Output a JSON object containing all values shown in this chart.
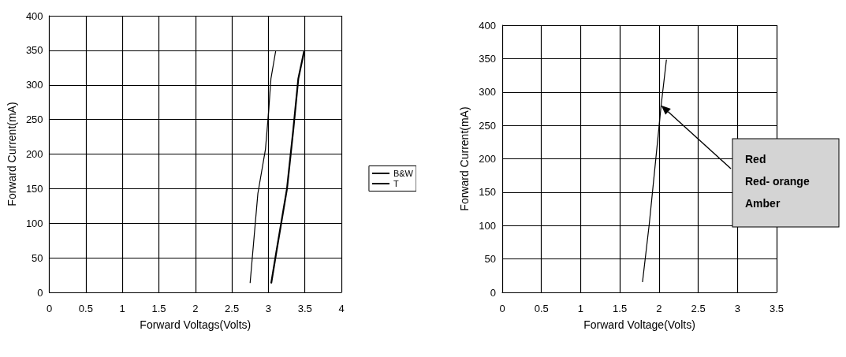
{
  "chart_data": [
    {
      "type": "line",
      "xlabel": "Forward Voltags(Volts)",
      "ylabel": "Forward Current(mA)",
      "xlim": [
        0,
        4
      ],
      "xticks": [
        0,
        0.5,
        1,
        1.5,
        2,
        2.5,
        3,
        3.5,
        4
      ],
      "ylim": [
        0,
        400
      ],
      "yticks": [
        0,
        50,
        100,
        150,
        200,
        250,
        300,
        350,
        400
      ],
      "grid": true,
      "legend": "right",
      "marker": "none",
      "line_style": "solid",
      "series": [
        {
          "name": "B&W",
          "color": "#000000",
          "x": [
            3.04,
            3.11,
            3.255,
            3.34,
            3.41,
            3.49
          ],
          "values": [
            14,
            59,
            150,
            234,
            309,
            349
          ]
        },
        {
          "name": "T",
          "color": "#000000",
          "x": [
            2.75,
            2.856,
            2.96,
            3.005,
            3.035,
            3.1
          ],
          "values": [
            14,
            143,
            207,
            264,
            309,
            349
          ]
        }
      ]
    },
    {
      "type": "line",
      "xlabel": "Forward Voltage(Volts)",
      "ylabel": "Forward Current(mA)",
      "xlim": [
        0,
        3.5
      ],
      "xticks": [
        0,
        0.5,
        1,
        1.5,
        2,
        2.5,
        3,
        3.5
      ],
      "ylim": [
        0,
        400
      ],
      "yticks": [
        0,
        50,
        100,
        150,
        200,
        250,
        300,
        350,
        400
      ],
      "grid": true,
      "marker": "none",
      "line_style": "solid",
      "annotations": [
        "Red",
        "Red- orange",
        "Amber"
      ],
      "series": [
        {
          "color": "#000000",
          "x": [
            1.79,
            1.876,
            1.96,
            2.027,
            2.094
          ],
          "values": [
            16,
            103,
            201,
            280,
            348
          ]
        }
      ]
    }
  ]
}
